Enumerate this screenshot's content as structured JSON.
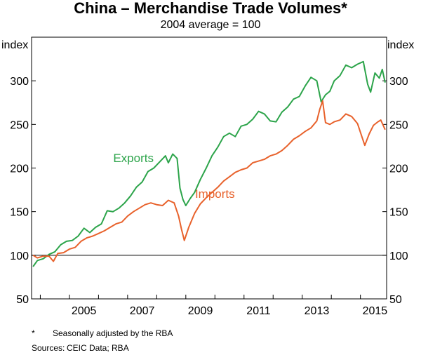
{
  "chart_data": {
    "type": "line",
    "title": "China – Merchandise Trade Volumes*",
    "subtitle": "2004 average = 100",
    "ylabel": "index",
    "ylim": [
      50,
      350
    ],
    "y_ticks": [
      50,
      100,
      150,
      200,
      250,
      300
    ],
    "xlim": [
      2003.7,
      2015.9
    ],
    "x_ticks": [
      2005,
      2007,
      2009,
      2011,
      2013,
      2015
    ],
    "x_tick_labels": [
      "2005",
      "2007",
      "2009",
      "2011",
      "2013",
      "2015"
    ],
    "reference_line": 100,
    "grid": false,
    "colors": {
      "Exports": "#2ca44a",
      "Imports": "#e8622c"
    },
    "series": [
      {
        "name": "Exports",
        "label_position": [
          2007.2,
          207
        ],
        "points": [
          [
            2003.75,
            87
          ],
          [
            2003.9,
            94
          ],
          [
            2004.1,
            96
          ],
          [
            2004.3,
            101
          ],
          [
            2004.5,
            104
          ],
          [
            2004.7,
            112
          ],
          [
            2004.9,
            116
          ],
          [
            2005.1,
            117
          ],
          [
            2005.3,
            122
          ],
          [
            2005.5,
            131
          ],
          [
            2005.7,
            126
          ],
          [
            2005.9,
            132
          ],
          [
            2006.1,
            136
          ],
          [
            2006.3,
            151
          ],
          [
            2006.5,
            150
          ],
          [
            2006.7,
            154
          ],
          [
            2006.9,
            160
          ],
          [
            2007.1,
            168
          ],
          [
            2007.3,
            178
          ],
          [
            2007.5,
            184
          ],
          [
            2007.7,
            196
          ],
          [
            2007.9,
            200
          ],
          [
            2008.1,
            207
          ],
          [
            2008.3,
            214
          ],
          [
            2008.4,
            206
          ],
          [
            2008.55,
            216
          ],
          [
            2008.7,
            211
          ],
          [
            2008.8,
            177
          ],
          [
            2008.9,
            164
          ],
          [
            2009.0,
            157
          ],
          [
            2009.15,
            165
          ],
          [
            2009.3,
            172
          ],
          [
            2009.5,
            187
          ],
          [
            2009.7,
            200
          ],
          [
            2009.9,
            214
          ],
          [
            2010.1,
            224
          ],
          [
            2010.3,
            236
          ],
          [
            2010.5,
            240
          ],
          [
            2010.7,
            236
          ],
          [
            2010.9,
            248
          ],
          [
            2011.1,
            250
          ],
          [
            2011.3,
            256
          ],
          [
            2011.5,
            265
          ],
          [
            2011.7,
            262
          ],
          [
            2011.9,
            254
          ],
          [
            2012.1,
            253
          ],
          [
            2012.3,
            264
          ],
          [
            2012.5,
            270
          ],
          [
            2012.7,
            279
          ],
          [
            2012.9,
            282
          ],
          [
            2013.1,
            294
          ],
          [
            2013.3,
            304
          ],
          [
            2013.5,
            300
          ],
          [
            2013.65,
            276
          ],
          [
            2013.8,
            284
          ],
          [
            2013.95,
            288
          ],
          [
            2014.1,
            300
          ],
          [
            2014.3,
            306
          ],
          [
            2014.5,
            318
          ],
          [
            2014.7,
            315
          ],
          [
            2014.9,
            319
          ],
          [
            2015.1,
            322
          ],
          [
            2015.25,
            296
          ],
          [
            2015.35,
            287
          ],
          [
            2015.5,
            309
          ],
          [
            2015.65,
            303
          ],
          [
            2015.75,
            313
          ],
          [
            2015.85,
            298
          ]
        ]
      },
      {
        "name": "Imports",
        "label_position": [
          2010.0,
          166
        ],
        "points": [
          [
            2003.75,
            100
          ],
          [
            2003.9,
            97
          ],
          [
            2004.1,
            99
          ],
          [
            2004.3,
            99
          ],
          [
            2004.45,
            93
          ],
          [
            2004.6,
            102
          ],
          [
            2004.8,
            103
          ],
          [
            2005.0,
            107
          ],
          [
            2005.2,
            109
          ],
          [
            2005.4,
            116
          ],
          [
            2005.6,
            120
          ],
          [
            2005.8,
            122
          ],
          [
            2006.0,
            125
          ],
          [
            2006.2,
            128
          ],
          [
            2006.4,
            132
          ],
          [
            2006.6,
            136
          ],
          [
            2006.8,
            138
          ],
          [
            2007.0,
            145
          ],
          [
            2007.2,
            150
          ],
          [
            2007.4,
            154
          ],
          [
            2007.6,
            158
          ],
          [
            2007.8,
            160
          ],
          [
            2008.0,
            158
          ],
          [
            2008.2,
            157
          ],
          [
            2008.4,
            163
          ],
          [
            2008.6,
            160
          ],
          [
            2008.75,
            145
          ],
          [
            2008.85,
            130
          ],
          [
            2008.95,
            117
          ],
          [
            2009.1,
            132
          ],
          [
            2009.3,
            148
          ],
          [
            2009.5,
            159
          ],
          [
            2009.7,
            166
          ],
          [
            2009.9,
            172
          ],
          [
            2010.1,
            178
          ],
          [
            2010.3,
            185
          ],
          [
            2010.5,
            190
          ],
          [
            2010.7,
            195
          ],
          [
            2010.9,
            198
          ],
          [
            2011.1,
            200
          ],
          [
            2011.3,
            206
          ],
          [
            2011.5,
            208
          ],
          [
            2011.7,
            210
          ],
          [
            2011.9,
            214
          ],
          [
            2012.1,
            216
          ],
          [
            2012.3,
            220
          ],
          [
            2012.5,
            226
          ],
          [
            2012.7,
            233
          ],
          [
            2012.9,
            237
          ],
          [
            2013.1,
            242
          ],
          [
            2013.3,
            246
          ],
          [
            2013.5,
            254
          ],
          [
            2013.6,
            267
          ],
          [
            2013.7,
            277
          ],
          [
            2013.8,
            252
          ],
          [
            2013.95,
            250
          ],
          [
            2014.1,
            253
          ],
          [
            2014.3,
            255
          ],
          [
            2014.5,
            262
          ],
          [
            2014.7,
            259
          ],
          [
            2014.9,
            251
          ],
          [
            2015.05,
            236
          ],
          [
            2015.15,
            226
          ],
          [
            2015.3,
            239
          ],
          [
            2015.45,
            249
          ],
          [
            2015.6,
            253
          ],
          [
            2015.7,
            255
          ],
          [
            2015.85,
            244
          ]
        ]
      }
    ]
  },
  "footnote": {
    "mark": "*",
    "text": "Seasonally adjusted by the RBA"
  },
  "sources": {
    "label": "Sources:",
    "text": "CEIC Data; RBA"
  }
}
